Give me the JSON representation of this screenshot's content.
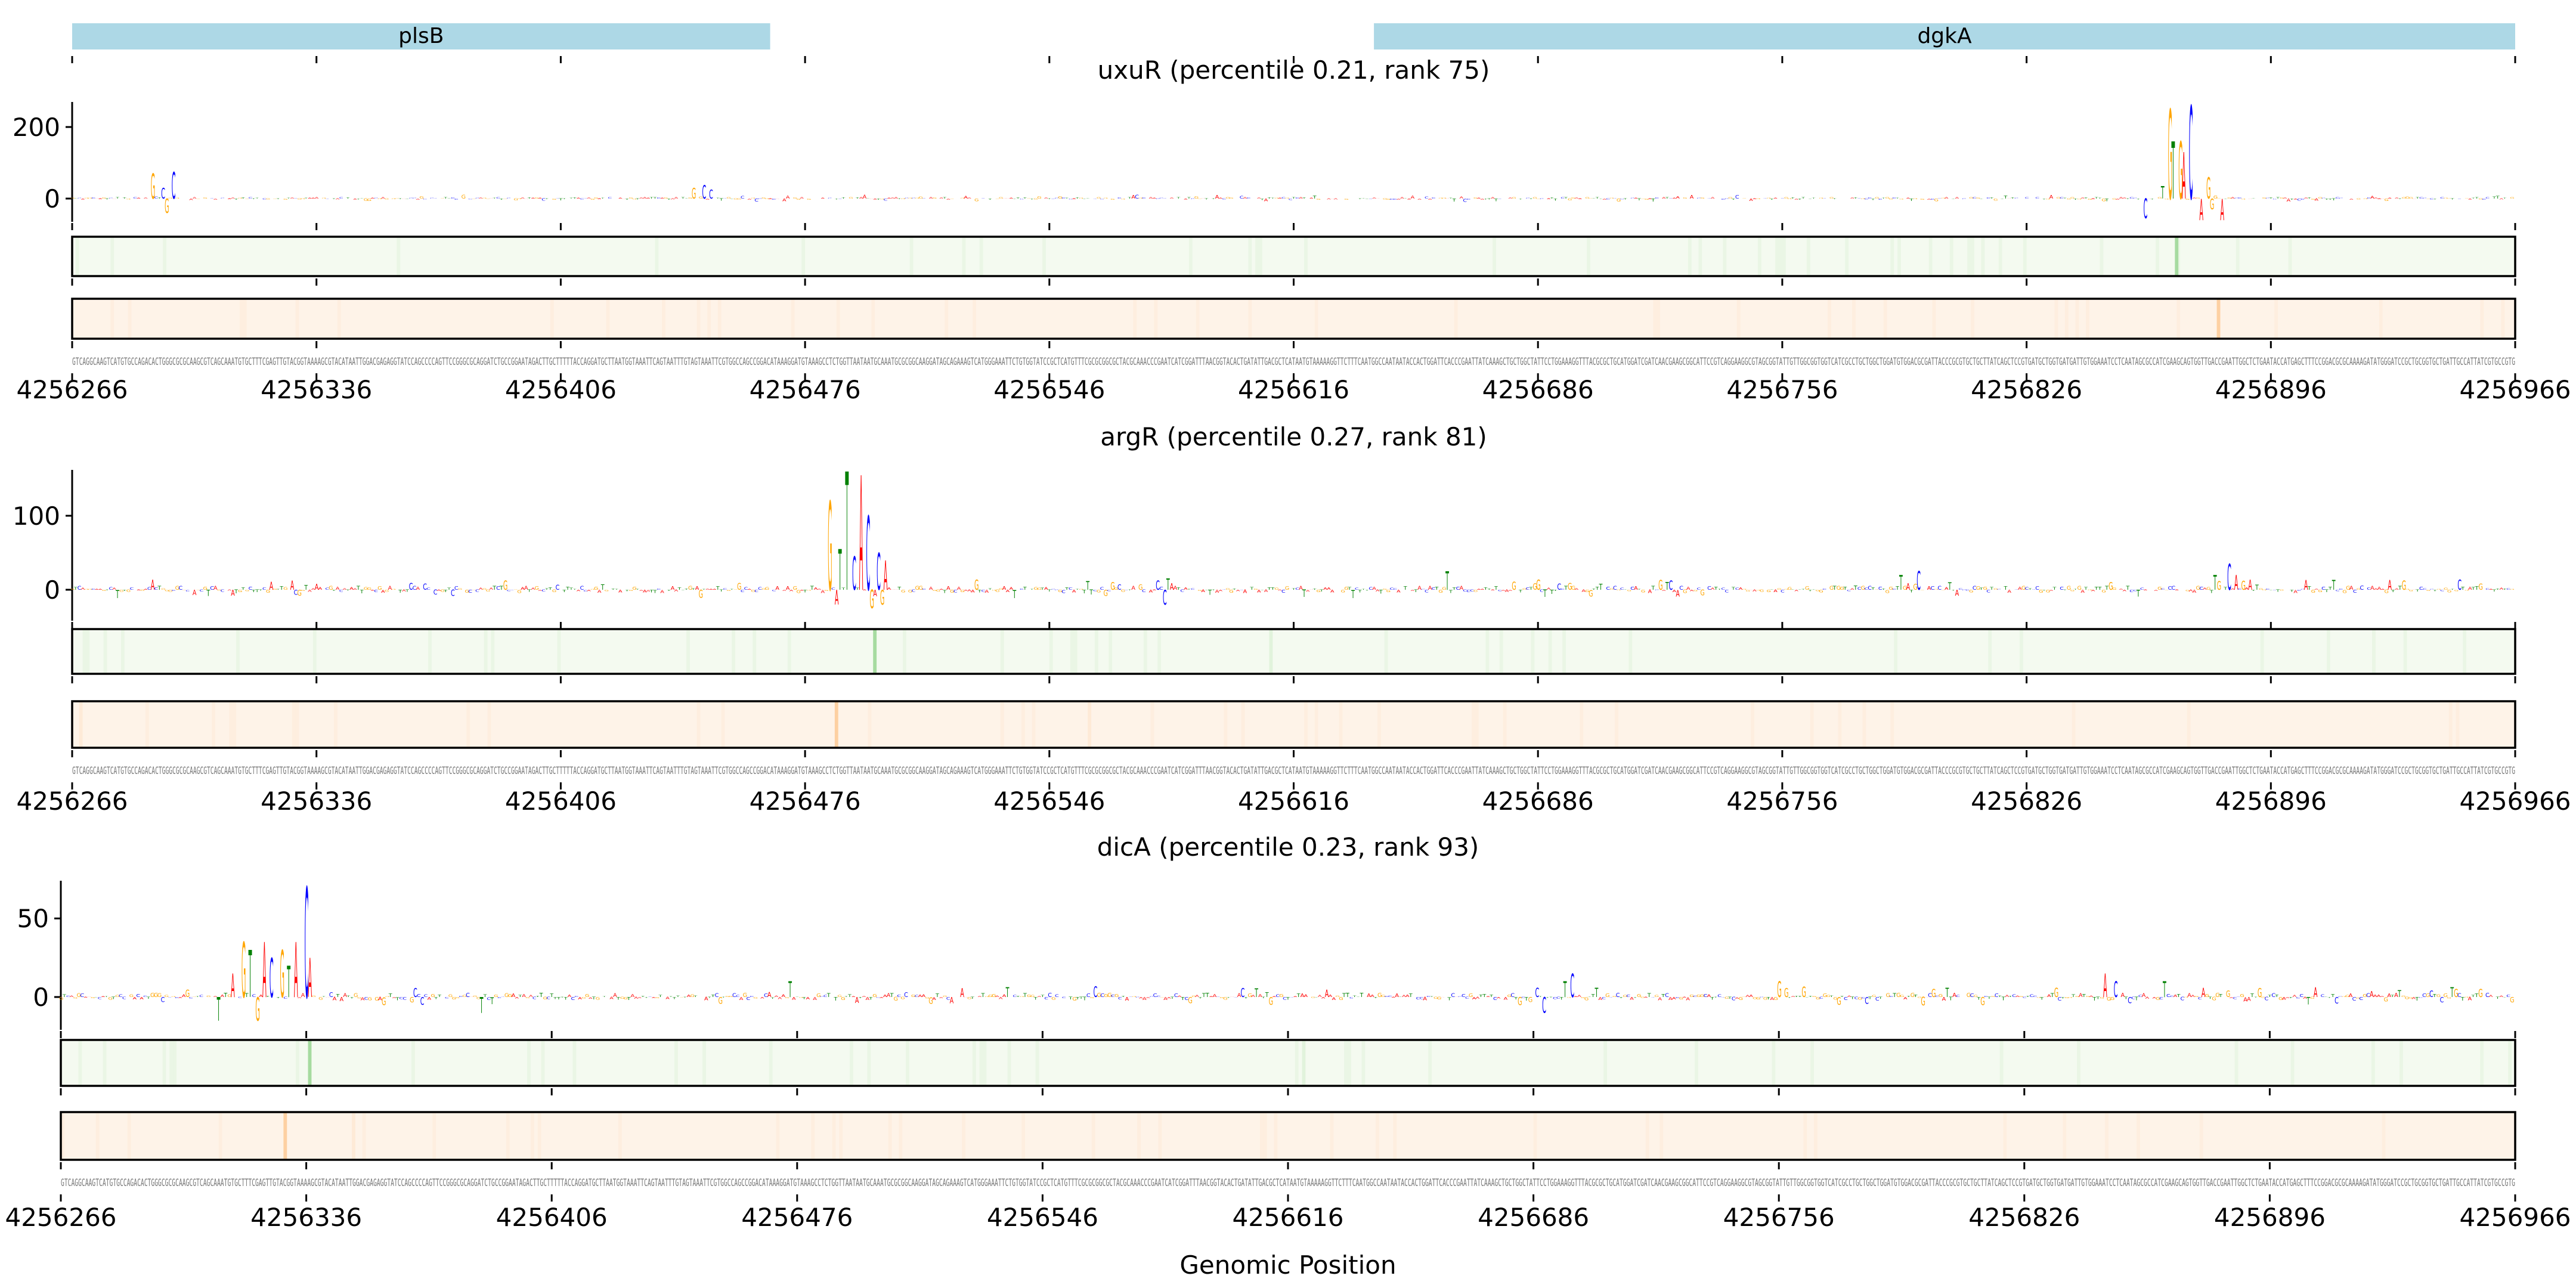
{
  "colors": {
    "A": "#ff0000",
    "C": "#0000ff",
    "G": "#ffa500",
    "T": "#008000",
    "gene": "#add8e6",
    "green_bg": "#f4faf0",
    "green_hi": "#a6dba0",
    "orange_bg": "#fef3e8",
    "orange_hi": "#fdd0a2"
  },
  "genes": [
    {
      "name": "plsB",
      "start": 4256266,
      "end": 4256466
    },
    {
      "name": "dgkA",
      "start": 4256639,
      "end": 4256966
    }
  ],
  "xlabel": "Genomic Position",
  "chart_data": [
    {
      "type": "sequence-logo",
      "title": "uxuR (percentile 0.21, rank 75)",
      "xlim": [
        4256266,
        4256966
      ],
      "xticks": [
        "4256266",
        "4256336",
        "4256406",
        "4256476",
        "4256546",
        "4256616",
        "4256686",
        "4256756",
        "4256826",
        "4256896",
        "4256966"
      ],
      "ylim": [
        -65,
        270
      ],
      "yticks": [
        "0",
        "200"
      ],
      "ytick_values": [
        0,
        200
      ],
      "noise_scale": 4,
      "peaks": [
        [
          4256289,
          "G",
          70
        ],
        [
          4256292,
          "C",
          30
        ],
        [
          4256293,
          "G",
          -40
        ],
        [
          4256295,
          "C",
          75
        ],
        [
          4256444,
          "G",
          30
        ],
        [
          4256447,
          "C",
          38
        ],
        [
          4256449,
          "C",
          25
        ],
        [
          4256860,
          "C",
          -55
        ],
        [
          4256865,
          "T",
          35
        ],
        [
          4256867,
          "G",
          250
        ],
        [
          4256868,
          "T",
          160
        ],
        [
          4256870,
          "G",
          160
        ],
        [
          4256871,
          "A",
          130
        ],
        [
          4256873,
          "C",
          260
        ],
        [
          4256876,
          "A",
          -60
        ],
        [
          4256878,
          "G",
          60
        ],
        [
          4256879,
          "G",
          -30
        ],
        [
          4256882,
          "A",
          -60
        ]
      ],
      "green_highlights": [
        4256869
      ],
      "orange_highlights": [
        4256881
      ]
    },
    {
      "type": "sequence-logo",
      "title": "argR (percentile 0.27, rank 81)",
      "xlim": [
        4256266,
        4256966
      ],
      "xticks": [
        "4256266",
        "4256336",
        "4256406",
        "4256476",
        "4256546",
        "4256616",
        "4256686",
        "4256756",
        "4256826",
        "4256896",
        "4256966"
      ],
      "ylim": [
        -42,
        162
      ],
      "yticks": [
        "0",
        "100"
      ],
      "ytick_values": [
        0,
        100
      ],
      "noise_scale": 5,
      "peaks": [
        [
          4256483,
          "G",
          120
        ],
        [
          4256485,
          "A",
          -20
        ],
        [
          4256486,
          "T",
          55
        ],
        [
          4256488,
          "T",
          160
        ],
        [
          4256490,
          "C",
          45
        ],
        [
          4256492,
          "A",
          155
        ],
        [
          4256494,
          "C",
          100
        ],
        [
          4256495,
          "G",
          -25
        ],
        [
          4256497,
          "C",
          50
        ],
        [
          4256498,
          "G",
          -20
        ],
        [
          4256499,
          "A",
          40
        ],
        [
          4256579,
          "C",
          -20
        ],
        [
          4256580,
          "T",
          15
        ],
        [
          4256660,
          "T",
          25
        ],
        [
          4256790,
          "T",
          20
        ],
        [
          4256795,
          "C",
          25
        ],
        [
          4256880,
          "T",
          20
        ],
        [
          4256884,
          "C",
          35
        ],
        [
          4256886,
          "A",
          20
        ]
      ],
      "green_highlights": [
        4256496
      ],
      "orange_highlights": [
        4256485
      ]
    },
    {
      "type": "sequence-logo",
      "title": "dicA (percentile 0.23, rank 93)",
      "xlim": [
        4256266,
        4256966
      ],
      "xticks": [
        "4256266",
        "4256336",
        "4256406",
        "4256476",
        "4256546",
        "4256616",
        "4256686",
        "4256756",
        "4256826",
        "4256896",
        "4256966"
      ],
      "ylim": [
        -21,
        74
      ],
      "yticks": [
        "0",
        "50"
      ],
      "ytick_values": [
        0,
        50
      ],
      "noise_scale": 2.5,
      "peaks": [
        [
          4256311,
          "T",
          -15
        ],
        [
          4256315,
          "A",
          15
        ],
        [
          4256318,
          "G",
          35
        ],
        [
          4256320,
          "T",
          30
        ],
        [
          4256322,
          "G",
          -15
        ],
        [
          4256324,
          "A",
          35
        ],
        [
          4256326,
          "C",
          25
        ],
        [
          4256329,
          "G",
          30
        ],
        [
          4256331,
          "T",
          20
        ],
        [
          4256333,
          "A",
          35
        ],
        [
          4256336,
          "C",
          70
        ],
        [
          4256337,
          "A",
          25
        ],
        [
          4256386,
          "T",
          -10
        ],
        [
          4256474,
          "T",
          10
        ],
        [
          4256689,
          "C",
          -10
        ],
        [
          4256695,
          "T",
          10
        ],
        [
          4256697,
          "C",
          15
        ],
        [
          4256756,
          "G",
          10
        ],
        [
          4256849,
          "A",
          15
        ],
        [
          4256852,
          "C",
          10
        ],
        [
          4256866,
          "T",
          10
        ]
      ],
      "green_highlights": [
        4256337
      ],
      "orange_highlights": [
        4256330
      ]
    }
  ],
  "sequence": "GTCAGGCAAGTCATGTGCCAGACACTGGGCGCGCAAGCGTCAGCAAATGTGCTTTCGAGTTGTACGGTAAAAGCGTACATAATTGGACGAGAGGTATCCAGCCCCAGTTCCGGGCGCAGGATCTGCCGGAATAGACTTGCTTTTTACCAGGATGCTTAATGGTAAATTCAGTAATTTGTAGTAAATTCGTGGCCAGCCGGACATAAAGGATGTAAAGCCTCTGGTTAATAATGCAAATGCGCGGCAAGGATAGCAGAAAGTCATGGGAAATTCTGTGGTATCCGCTCATGTTTCGCGCGGCGCTACGCAAACCCGAATCATCGGATTTAACGGTACACTGATATTGACGCTCATAATGTAAAAAGGTTCTTTCAATGGCCAATAATACCACTGGATTCACCCGAATTATCAAAGCTGCTGGCTATTCCTGGAAAGGTTTACGCGCTGCATGGATCGATCAACGAAGCGGCATTCCGTCAGGAAGGCGTAGCGGTATTGTTGGCGGTGGTCATCGCCTGCTGGCTGGATGTGGACGCGATTACCCGCGTGCTGCTTATCAGCTCCGTGATGCTGGTGATGATTGTGGAAATCCTCAATAGCGCCATCGAAGCAGTGGTTGACCGAATTGGCTCTGAATACCATGAGCTTTCCGGACGCGCAAAAGATATGGGATCCGCTGCGGTGCTGATTGCCATTATCGTGCCGTG"
}
